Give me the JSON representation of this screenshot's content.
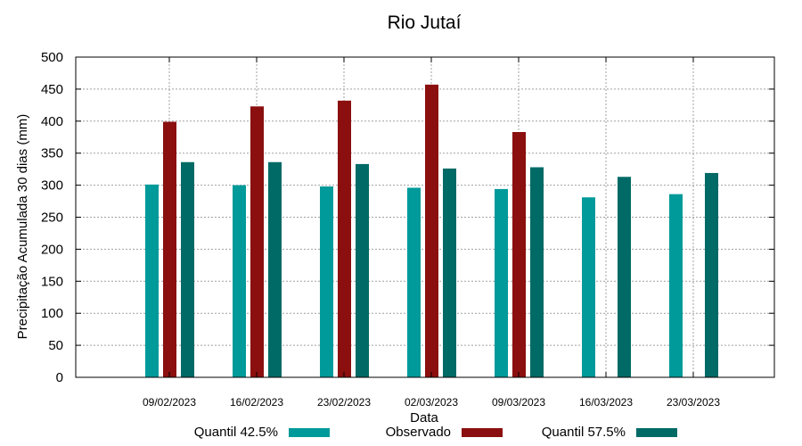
{
  "chart_data": {
    "type": "bar",
    "title": "Rio Jutaí",
    "xlabel": "Data",
    "ylabel": "Precipitação Acumulada 30 dias (mm)",
    "ylim": [
      0,
      500
    ],
    "yticks": [
      0,
      50,
      100,
      150,
      200,
      250,
      300,
      350,
      400,
      450,
      500
    ],
    "grid": true,
    "legend_position": "bottom",
    "categories": [
      "09/02/2023",
      "16/02/2023",
      "23/02/2023",
      "02/03/2023",
      "09/03/2023",
      "16/03/2023",
      "23/03/2023"
    ],
    "series": [
      {
        "name": "Quantil 42.5%",
        "color": "#009a9a",
        "values": [
          301,
          300,
          298,
          296,
          294,
          281,
          286
        ]
      },
      {
        "name": "Observado",
        "color": "#8b0f0f",
        "values": [
          399,
          423,
          432,
          457,
          383,
          null,
          null
        ]
      },
      {
        "name": "Quantil 57.5%",
        "color": "#006a66",
        "values": [
          336,
          336,
          333,
          326,
          328,
          313,
          319
        ]
      }
    ]
  }
}
